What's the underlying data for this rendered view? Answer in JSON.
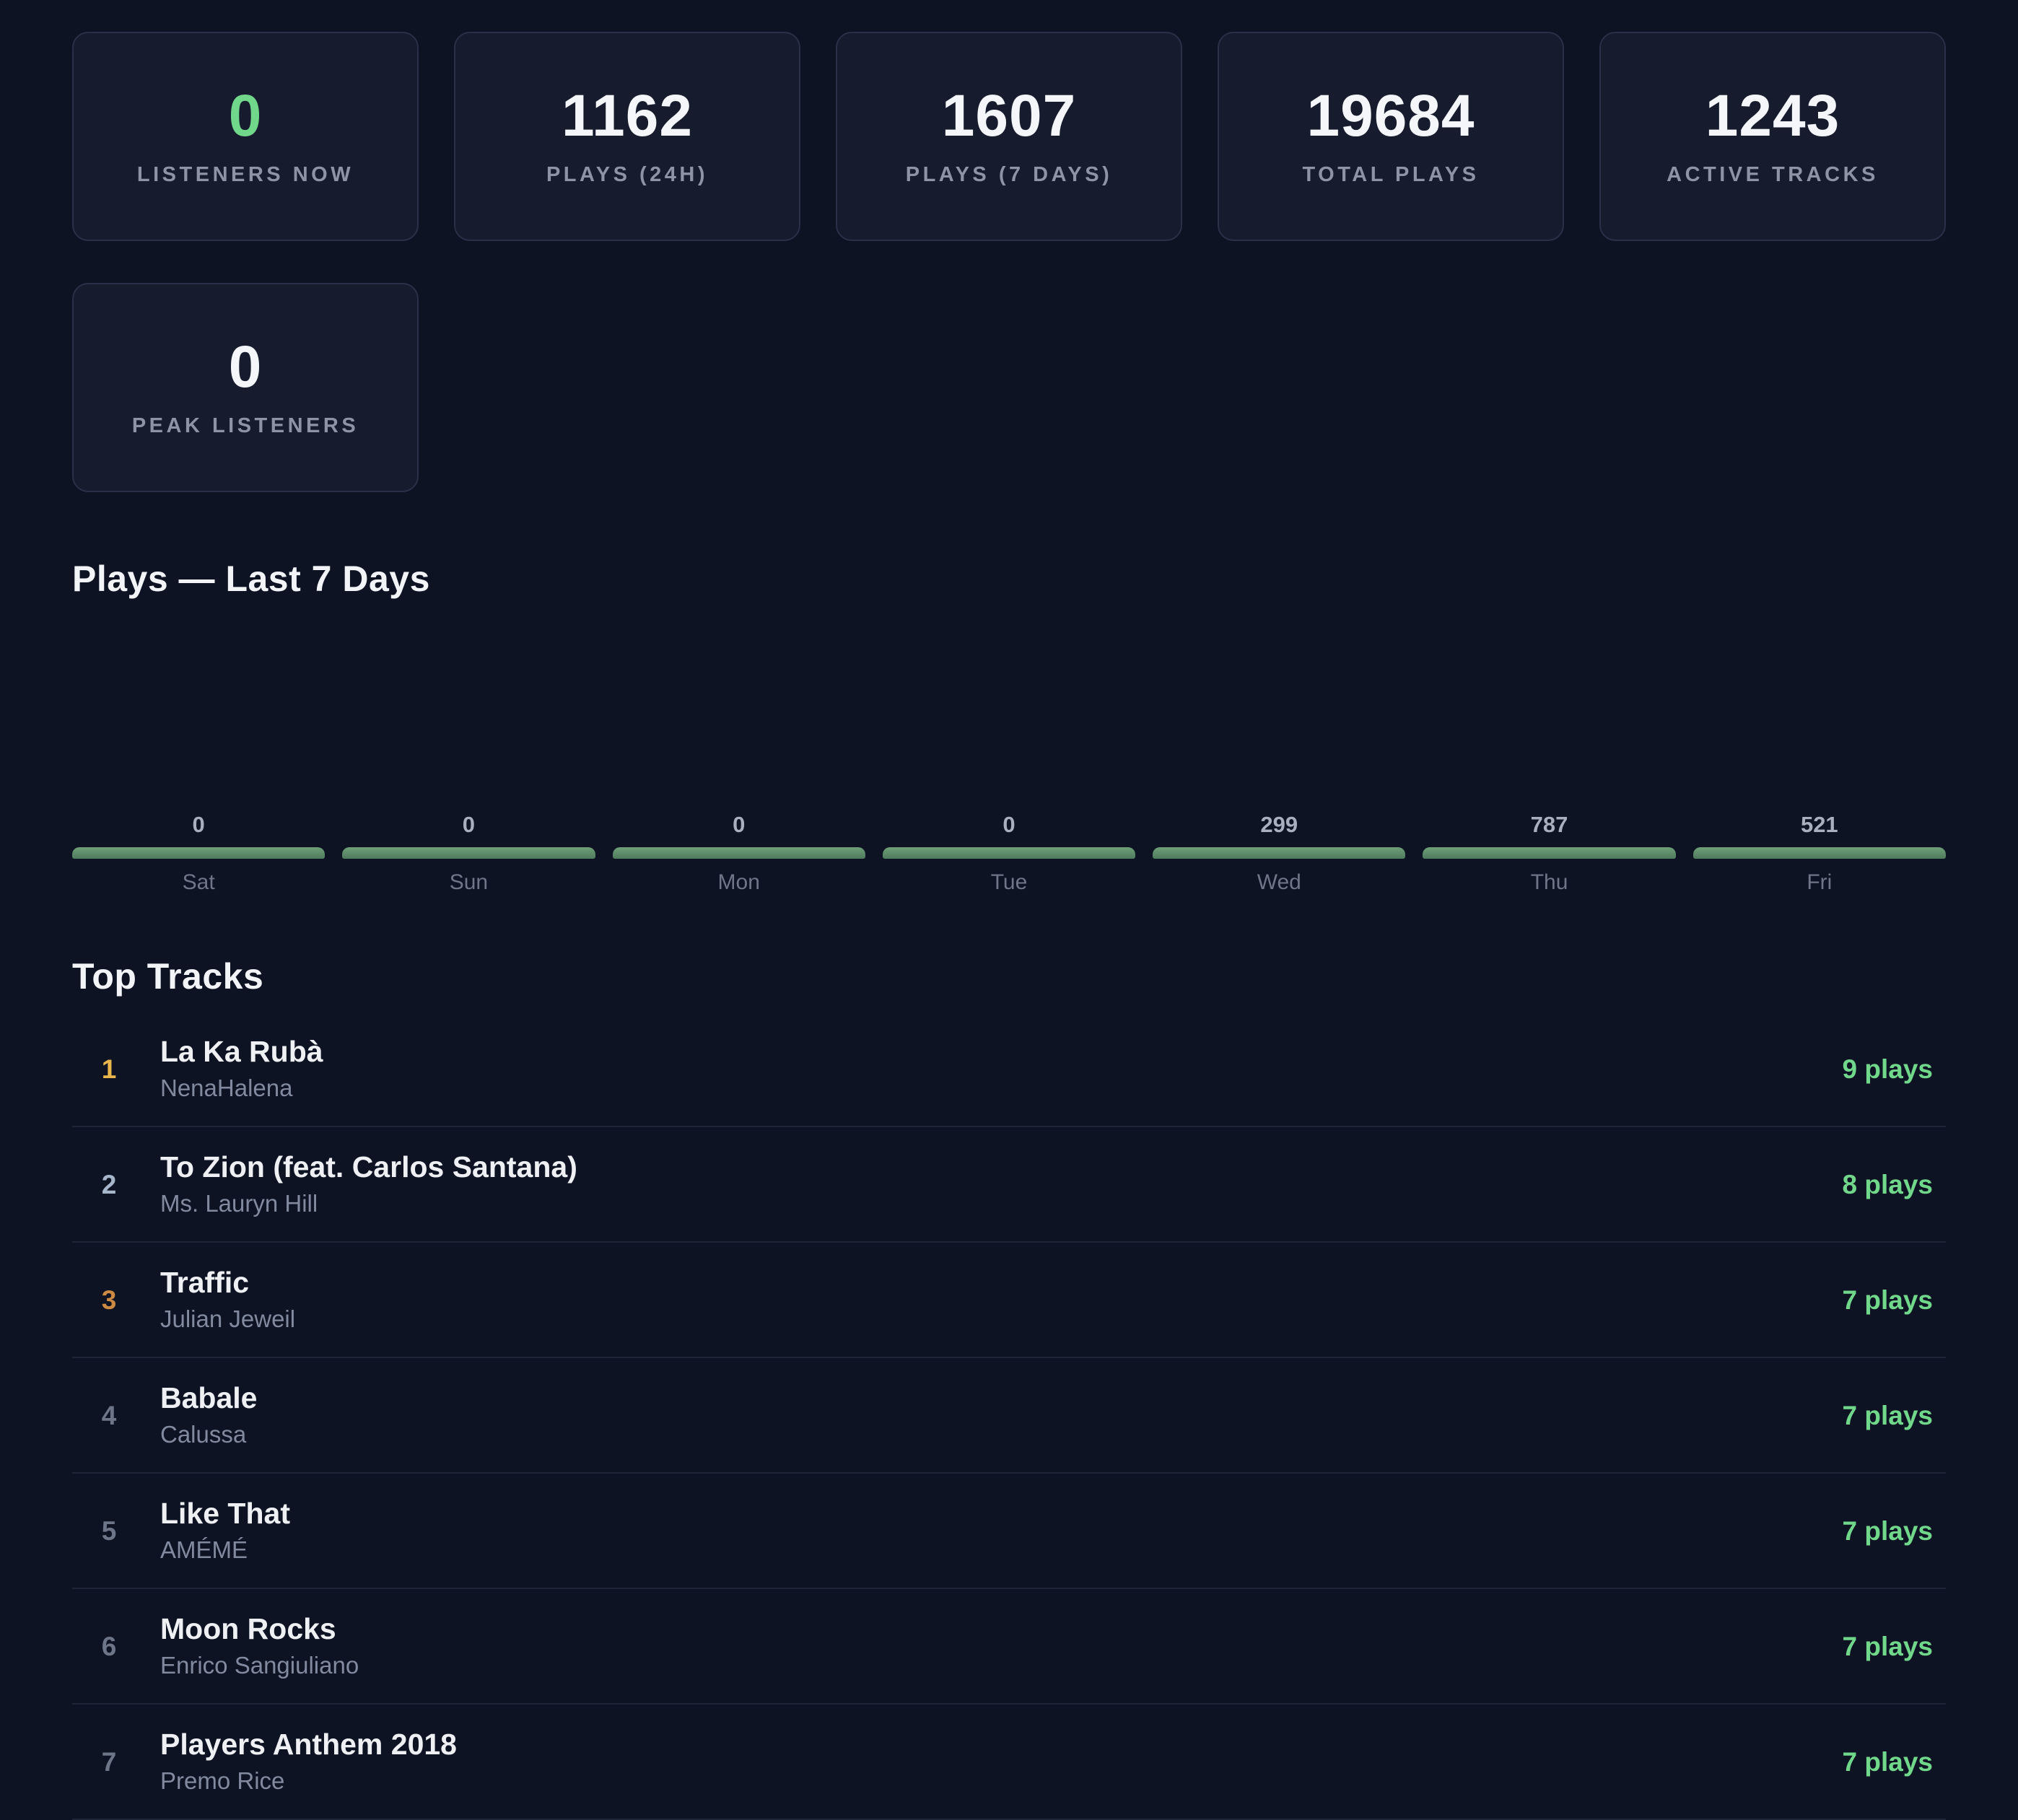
{
  "colors": {
    "bg": "#0d1322",
    "card-bg": "#161c2d",
    "card-border": "#293048",
    "accent": "#71d78b",
    "gold": "#e7b54c",
    "silver": "#a7b7cb",
    "bronze": "#cd8a43",
    "divider": "#1e2536",
    "bar-top": "#6fa078",
    "bar-bottom": "#4f7a5e"
  },
  "stats": [
    {
      "value": "0",
      "label": "LISTENERS NOW"
    },
    {
      "value": "1162",
      "label": "PLAYS (24H)"
    },
    {
      "value": "1607",
      "label": "PLAYS (7 DAYS)"
    },
    {
      "value": "19684",
      "label": "TOTAL PLAYS"
    },
    {
      "value": "1243",
      "label": "ACTIVE TRACKS"
    },
    {
      "value": "0",
      "label": "PEAK LISTENERS"
    }
  ],
  "chart_data": {
    "type": "bar",
    "title": "Plays — Last 7 Days",
    "categories": [
      "Sat",
      "Sun",
      "Mon",
      "Tue",
      "Wed",
      "Thu",
      "Fri"
    ],
    "values": [
      0,
      0,
      0,
      0,
      299,
      787,
      521
    ],
    "value_labels": [
      "0",
      "0",
      "0",
      "0",
      "299",
      "787",
      "521"
    ],
    "xlabel": "",
    "ylabel": "",
    "bar_color": "#5b8f67",
    "grid": false,
    "legend": false,
    "layout_note": "values shown as labels above bars; all bars drawn at uniform minimal height on a single baseline"
  },
  "tracks": {
    "title": "Top Tracks",
    "items": [
      {
        "rank": "1",
        "title": "La Ka Rubà",
        "artist": "NenaHalena",
        "plays": "9 plays"
      },
      {
        "rank": "2",
        "title": "To Zion (feat. Carlos Santana)",
        "artist": "Ms. Lauryn Hill",
        "plays": "8 plays"
      },
      {
        "rank": "3",
        "title": "Traffic",
        "artist": "Julian Jeweil",
        "plays": "7 plays"
      },
      {
        "rank": "4",
        "title": "Babale",
        "artist": "Calussa",
        "plays": "7 plays"
      },
      {
        "rank": "5",
        "title": "Like That",
        "artist": "AMÉMÉ",
        "plays": "7 plays"
      },
      {
        "rank": "6",
        "title": "Moon Rocks",
        "artist": "Enrico Sangiuliano",
        "plays": "7 plays"
      },
      {
        "rank": "7",
        "title": "Players Anthem 2018",
        "artist": "Premo Rice",
        "plays": "7 plays"
      }
    ]
  }
}
